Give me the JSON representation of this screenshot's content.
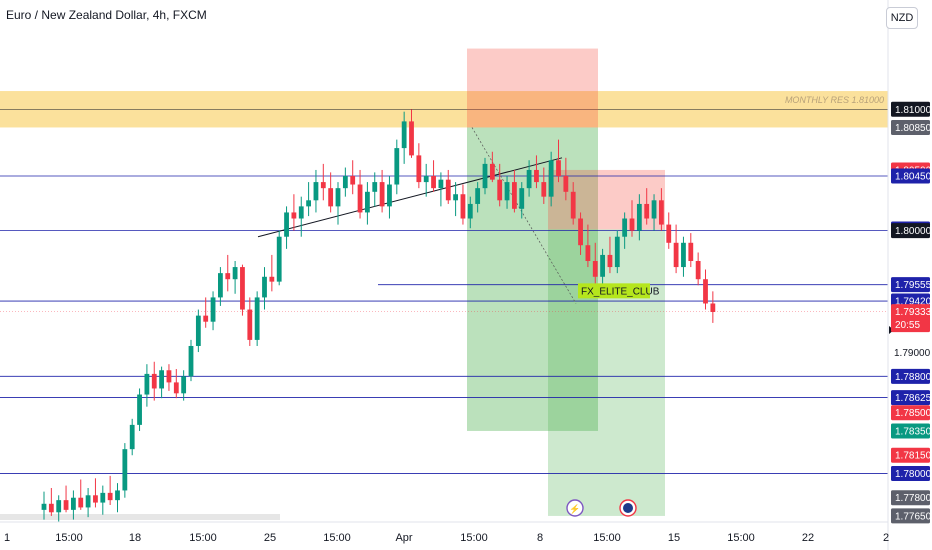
{
  "header": {
    "title": "Euro / New Zealand Dollar, 4h, FXCM",
    "currency": "NZD"
  },
  "chart_data": {
    "type": "candlestick",
    "instrument": "Euro / New Zealand Dollar",
    "timeframe": "4h",
    "source": "FXCM",
    "ylim": [
      1.776,
      1.819
    ],
    "x_ticks": [
      "15:00",
      "18",
      "15:00",
      "25",
      "15:00",
      "Apr",
      "15:00",
      "8",
      "15:00",
      "15",
      "15:00",
      "22",
      "2"
    ],
    "y_ticks": [
      "1.79000"
    ],
    "price_tags": [
      {
        "value": 1.81,
        "label": "1.81000",
        "bg": "#131722",
        "fg": "#ffffff"
      },
      {
        "value": 1.8085,
        "label": "1.80850",
        "bg": "#5d606b",
        "fg": "#ffffff"
      },
      {
        "value": 1.805,
        "label": "1.80500",
        "bg": "#f23645",
        "fg": "#ffffff"
      },
      {
        "value": 1.8045,
        "label": "1.80450",
        "bg": "#1e22aa",
        "fg": "#ffffff"
      },
      {
        "value": 1.80014,
        "label": "1.80014",
        "bg": "#1e22aa",
        "fg": "#ffffff"
      },
      {
        "value": 1.8,
        "label": "1.80000",
        "bg": "#131722",
        "fg": "#ffffff"
      },
      {
        "value": 1.79555,
        "label": "1.79555",
        "bg": "#1e22aa",
        "fg": "#ffffff"
      },
      {
        "value": 1.7942,
        "label": "1.79420",
        "bg": "#1e22aa",
        "fg": "#ffffff"
      },
      {
        "value": 1.79333,
        "label": "1.79333",
        "bg": "#f23645",
        "fg": "#ffffff",
        "sub": "20:55"
      },
      {
        "value": 1.788,
        "label": "1.78800",
        "bg": "#1e22aa",
        "fg": "#ffffff"
      },
      {
        "value": 1.78625,
        "label": "1.78625",
        "bg": "#1e22aa",
        "fg": "#ffffff"
      },
      {
        "value": 1.785,
        "label": "1.78500",
        "bg": "#f23645",
        "fg": "#ffffff"
      },
      {
        "value": 1.7835,
        "label": "1.78350",
        "bg": "#089981",
        "fg": "#ffffff"
      },
      {
        "value": 1.7815,
        "label": "1.78150",
        "bg": "#f23645",
        "fg": "#ffffff"
      },
      {
        "value": 1.78,
        "label": "1.78000",
        "bg": "#1e22aa",
        "fg": "#ffffff"
      },
      {
        "value": 1.778,
        "label": "1.77800",
        "bg": "#5d606b",
        "fg": "#ffffff"
      },
      {
        "value": 1.7765,
        "label": "1.77650",
        "bg": "#5d606b",
        "fg": "#ffffff"
      }
    ],
    "horizontal_levels": [
      1.8045,
      1.8,
      1.7942,
      1.788,
      1.78625,
      1.78
    ],
    "partial_level": 1.79555,
    "current_price": 1.79333,
    "resistance_zone": {
      "label": "MONTHLY RES 1.81000",
      "from": 1.8085,
      "to": 1.8115
    },
    "marker_label": "FX_ELITE_CLUB",
    "colors": {
      "up": "#089981",
      "down": "#f23645",
      "level": "#1e22aa",
      "zone": "#f7c94b",
      "profit": "#4caf50",
      "loss": "#f44336"
    },
    "candles": [
      [
        1.777,
        1.7785,
        1.7762,
        1.7775
      ],
      [
        1.7775,
        1.7788,
        1.7765,
        1.7768
      ],
      [
        1.7768,
        1.7782,
        1.776,
        1.7778
      ],
      [
        1.7778,
        1.779,
        1.7768,
        1.777
      ],
      [
        1.777,
        1.7786,
        1.7762,
        1.778
      ],
      [
        1.778,
        1.7795,
        1.777,
        1.7772
      ],
      [
        1.7772,
        1.7788,
        1.7764,
        1.7782
      ],
      [
        1.7782,
        1.7796,
        1.7772,
        1.7776
      ],
      [
        1.7776,
        1.779,
        1.7766,
        1.7784
      ],
      [
        1.7784,
        1.7798,
        1.7774,
        1.7778
      ],
      [
        1.7778,
        1.7792,
        1.7768,
        1.7786
      ],
      [
        1.7786,
        1.7825,
        1.778,
        1.782
      ],
      [
        1.782,
        1.7845,
        1.7815,
        1.784
      ],
      [
        1.784,
        1.787,
        1.7835,
        1.7865
      ],
      [
        1.7865,
        1.789,
        1.7855,
        1.7882
      ],
      [
        1.7882,
        1.7892,
        1.786,
        1.787
      ],
      [
        1.787,
        1.7888,
        1.7862,
        1.7885
      ],
      [
        1.7885,
        1.789,
        1.7868,
        1.7875
      ],
      [
        1.7875,
        1.7886,
        1.7862,
        1.7866
      ],
      [
        1.7866,
        1.7885,
        1.786,
        1.788
      ],
      [
        1.788,
        1.791,
        1.7876,
        1.7905
      ],
      [
        1.7905,
        1.7935,
        1.79,
        1.793
      ],
      [
        1.793,
        1.7945,
        1.792,
        1.7925
      ],
      [
        1.7925,
        1.795,
        1.7918,
        1.7945
      ],
      [
        1.7945,
        1.797,
        1.7938,
        1.7965
      ],
      [
        1.7965,
        1.798,
        1.795,
        1.796
      ],
      [
        1.796,
        1.7975,
        1.7948,
        1.797
      ],
      [
        1.797,
        1.7972,
        1.793,
        1.7935
      ],
      [
        1.7935,
        1.7945,
        1.7905,
        1.791
      ],
      [
        1.791,
        1.795,
        1.7905,
        1.7945
      ],
      [
        1.7945,
        1.797,
        1.7935,
        1.7962
      ],
      [
        1.7962,
        1.798,
        1.795,
        1.7958
      ],
      [
        1.7958,
        1.8,
        1.7955,
        1.7995
      ],
      [
        1.7995,
        1.802,
        1.7985,
        1.8015
      ],
      [
        1.8015,
        1.803,
        1.8,
        1.801
      ],
      [
        1.801,
        1.8028,
        1.7995,
        1.802
      ],
      [
        1.802,
        1.804,
        1.8012,
        1.8025
      ],
      [
        1.8025,
        1.805,
        1.8015,
        1.804
      ],
      [
        1.804,
        1.8055,
        1.8025,
        1.8035
      ],
      [
        1.8035,
        1.8048,
        1.8015,
        1.802
      ],
      [
        1.802,
        1.804,
        1.8005,
        1.8035
      ],
      [
        1.8035,
        1.8052,
        1.8028,
        1.8045
      ],
      [
        1.8045,
        1.8058,
        1.803,
        1.8038
      ],
      [
        1.8038,
        1.805,
        1.801,
        1.8015
      ],
      [
        1.8015,
        1.804,
        1.8005,
        1.8032
      ],
      [
        1.8032,
        1.8048,
        1.802,
        1.804
      ],
      [
        1.804,
        1.805,
        1.8015,
        1.802
      ],
      [
        1.802,
        1.8045,
        1.801,
        1.8038
      ],
      [
        1.8038,
        1.8075,
        1.803,
        1.8068
      ],
      [
        1.8068,
        1.8098,
        1.8055,
        1.809
      ],
      [
        1.809,
        1.81,
        1.806,
        1.8062
      ],
      [
        1.8062,
        1.8072,
        1.8035,
        1.804
      ],
      [
        1.804,
        1.8055,
        1.8028,
        1.8045
      ],
      [
        1.8045,
        1.8058,
        1.8032,
        1.8035
      ],
      [
        1.8035,
        1.8048,
        1.802,
        1.8042
      ],
      [
        1.8042,
        1.805,
        1.8022,
        1.8025
      ],
      [
        1.8025,
        1.804,
        1.8012,
        1.803
      ],
      [
        1.803,
        1.8038,
        1.8005,
        1.801
      ],
      [
        1.801,
        1.8028,
        1.8002,
        1.8022
      ],
      [
        1.8022,
        1.804,
        1.8015,
        1.8035
      ],
      [
        1.8035,
        1.806,
        1.803,
        1.8055
      ],
      [
        1.8055,
        1.8065,
        1.804,
        1.8042
      ],
      [
        1.8042,
        1.8055,
        1.802,
        1.8025
      ],
      [
        1.8025,
        1.8045,
        1.8018,
        1.804
      ],
      [
        1.804,
        1.805,
        1.8015,
        1.8018
      ],
      [
        1.8018,
        1.804,
        1.801,
        1.8035
      ],
      [
        1.8035,
        1.8058,
        1.8028,
        1.805
      ],
      [
        1.805,
        1.8062,
        1.8035,
        1.804
      ],
      [
        1.804,
        1.8052,
        1.8022,
        1.8028
      ],
      [
        1.8028,
        1.8065,
        1.802,
        1.8058
      ],
      [
        1.8058,
        1.8075,
        1.804,
        1.8045
      ],
      [
        1.8045,
        1.806,
        1.8025,
        1.8032
      ],
      [
        1.8032,
        1.804,
        1.8005,
        1.801
      ],
      [
        1.801,
        1.8015,
        1.798,
        1.7988
      ],
      [
        1.7988,
        1.8005,
        1.797,
        1.7975
      ],
      [
        1.7975,
        1.799,
        1.7955,
        1.7962
      ],
      [
        1.7962,
        1.7985,
        1.7955,
        1.798
      ],
      [
        1.798,
        1.7995,
        1.7965,
        1.797
      ],
      [
        1.797,
        1.8,
        1.7965,
        1.7995
      ],
      [
        1.7995,
        1.8015,
        1.7985,
        1.801
      ],
      [
        1.801,
        1.8025,
        1.7995,
        1.8
      ],
      [
        1.8,
        1.803,
        1.7992,
        1.8022
      ],
      [
        1.8022,
        1.8035,
        1.8005,
        1.801
      ],
      [
        1.801,
        1.803,
        1.8,
        1.8025
      ],
      [
        1.8025,
        1.8035,
        1.8,
        1.8005
      ],
      [
        1.8005,
        1.8015,
        1.7985,
        1.799
      ],
      [
        1.799,
        1.8005,
        1.7965,
        1.797
      ],
      [
        1.797,
        1.7995,
        1.7962,
        1.799
      ],
      [
        1.799,
        1.7998,
        1.797,
        1.7975
      ],
      [
        1.7975,
        1.7982,
        1.7955,
        1.796
      ],
      [
        1.796,
        1.7968,
        1.7935,
        1.794
      ],
      [
        1.794,
        1.795,
        1.7924,
        1.7933
      ]
    ]
  }
}
